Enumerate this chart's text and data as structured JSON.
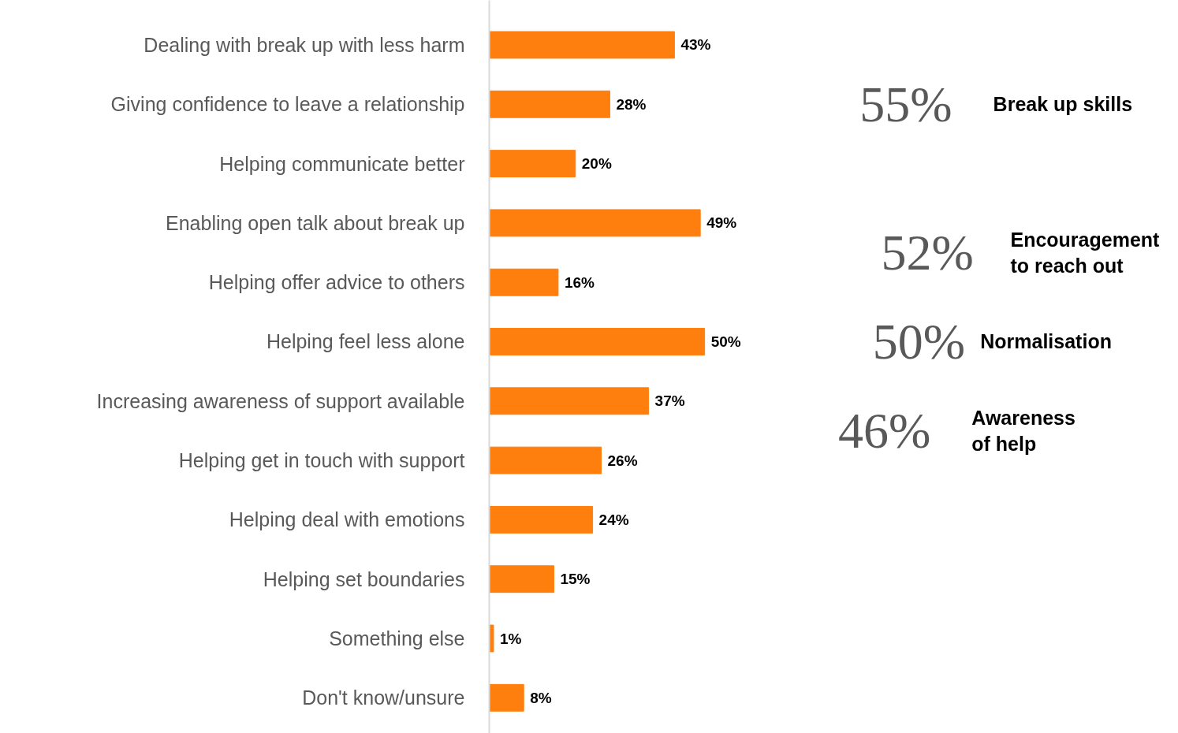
{
  "chart_data": {
    "type": "bar",
    "orientation": "horizontal",
    "grid": false,
    "categories": [
      "Dealing with break up with less harm",
      "Giving confidence to leave a relationship",
      "Helping communicate better",
      "Enabling open talk about break up",
      "Helping offer advice to others",
      "Helping feel less alone",
      "Increasing awareness of support available",
      "Helping get in touch with support",
      "Helping deal with emotions",
      "Helping set boundaries",
      "Something else",
      "Don't know/unsure"
    ],
    "series": [
      {
        "color": "#ff7f0e",
        "values": [
          43,
          28,
          20,
          49,
          16,
          50,
          37,
          26,
          24,
          15,
          1,
          8
        ],
        "value_labels": [
          "43%",
          "28%",
          "20%",
          "49%",
          "16%",
          "50%",
          "37%",
          "26%",
          "24%",
          "15%",
          "1%",
          "8%"
        ]
      }
    ],
    "annotations": [
      "55%",
      "Break up skills",
      "52%",
      "Encouragement\nto reach out",
      "50%",
      "Normalisation",
      "46%",
      "Awareness\nof help"
    ]
  }
}
